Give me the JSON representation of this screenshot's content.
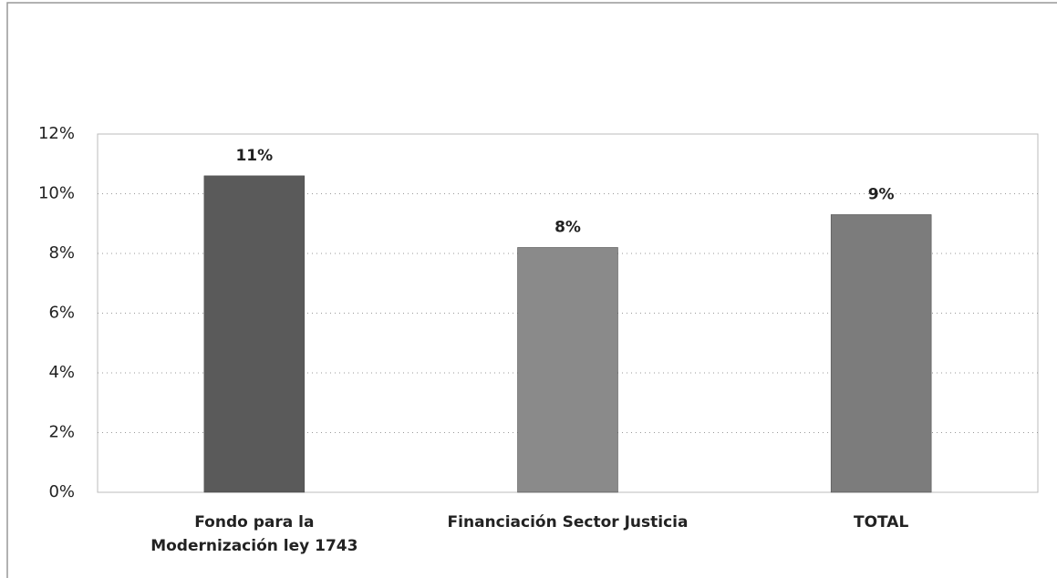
{
  "chart_data": {
    "type": "bar",
    "categories": [
      "Fondo para la Modernización ley 1743",
      "Financiación Sector Justicia",
      "TOTAL"
    ],
    "values": [
      10.6,
      8.2,
      9.3
    ],
    "value_labels": [
      "11%",
      "8%",
      "9%"
    ],
    "colors": [
      "#5a5a5a",
      "#8a8a8a",
      "#7c7c7c"
    ],
    "ylim": [
      0,
      12
    ],
    "yticks": [
      {
        "value": 0,
        "label": "0%"
      },
      {
        "value": 2,
        "label": "2%"
      },
      {
        "value": 4,
        "label": "4%"
      },
      {
        "value": 6,
        "label": "6%"
      },
      {
        "value": 8,
        "label": "8%"
      },
      {
        "value": 10,
        "label": "10%"
      },
      {
        "value": 12,
        "label": "12%"
      }
    ],
    "grid": true
  }
}
